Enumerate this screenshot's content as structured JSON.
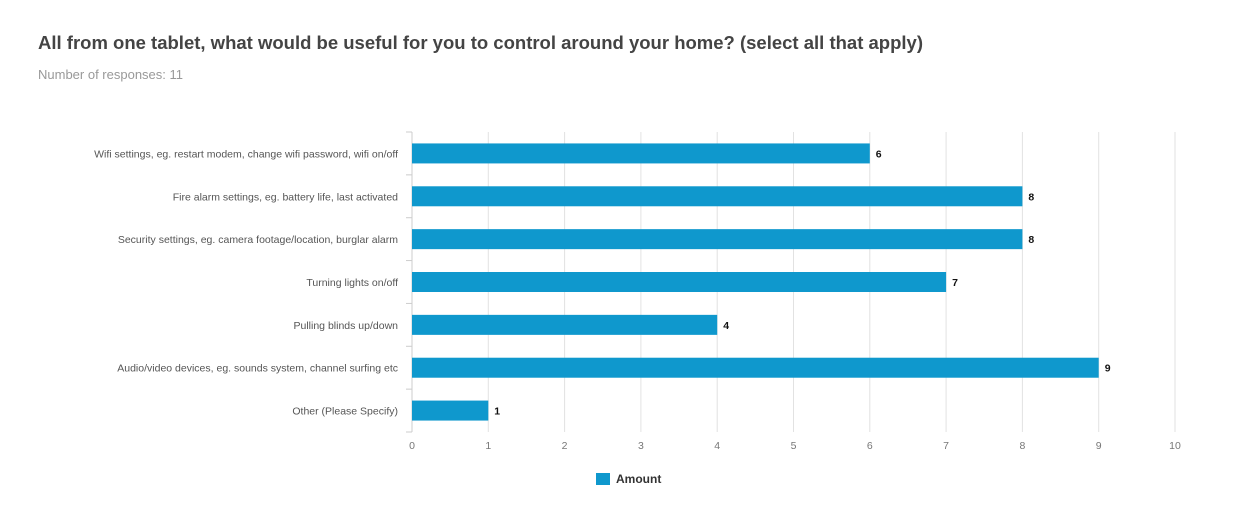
{
  "header": {
    "title": "All from one tablet, what would be useful for you to control around your home? (select all that apply)",
    "subtitle": "Number of responses: 11"
  },
  "colors": {
    "bar": "#0f98cd",
    "grid": "#e2e2e2",
    "axis": "#cccccc"
  },
  "chart_data": {
    "type": "bar",
    "orientation": "horizontal",
    "categories": [
      "Wifi settings, eg. restart modem, change wifi password, wifi on/off",
      "Fire alarm settings, eg. battery life, last activated",
      "Security settings, eg. camera footage/location, burglar alarm",
      "Turning lights on/off",
      "Pulling blinds up/down",
      "Audio/video devices, eg. sounds system, channel surfing etc",
      "Other (Please Specify)"
    ],
    "series": [
      {
        "name": "Amount",
        "values": [
          6,
          8,
          8,
          7,
          4,
          9,
          1
        ]
      }
    ],
    "xlim": [
      0,
      10
    ],
    "xticks": [
      "0",
      "1",
      "2",
      "3",
      "4",
      "5",
      "6",
      "7",
      "8",
      "9",
      "10"
    ],
    "data_labels": true,
    "grid": true,
    "legend_position": "bottom-center"
  }
}
